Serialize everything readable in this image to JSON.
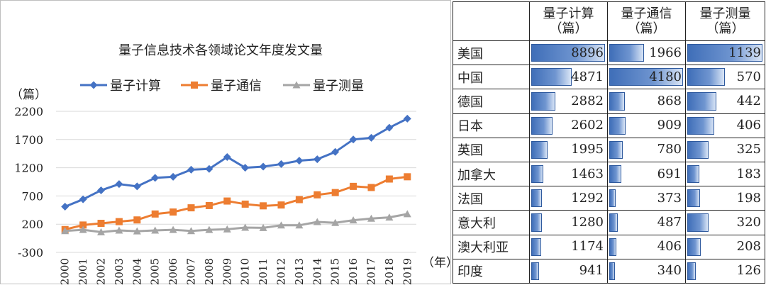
{
  "chart_data": [
    {
      "type": "line",
      "title": "量子信息技术各领域论文年度发文量",
      "ylabel": "（篇）",
      "xlabel": "（年）",
      "ylim": [
        -300,
        2200
      ],
      "yticks": [
        -300,
        200,
        700,
        1200,
        1700,
        2200
      ],
      "categories": [
        "2000",
        "2001",
        "2002",
        "2003",
        "2004",
        "2005",
        "2006",
        "2007",
        "2008",
        "2009",
        "2010",
        "2011",
        "2012",
        "2013",
        "2014",
        "2015",
        "2016",
        "2017",
        "2018",
        "2019"
      ],
      "series": [
        {
          "name": "量子计算",
          "color": "#4472c4",
          "marker": "diamond",
          "values": [
            510,
            640,
            800,
            910,
            870,
            1020,
            1040,
            1165,
            1180,
            1390,
            1200,
            1220,
            1265,
            1325,
            1350,
            1480,
            1700,
            1730,
            1910,
            2070
          ]
        },
        {
          "name": "量子通信",
          "color": "#ed7d31",
          "marker": "square",
          "values": [
            105,
            185,
            215,
            245,
            275,
            380,
            415,
            490,
            530,
            610,
            555,
            525,
            540,
            635,
            720,
            760,
            870,
            850,
            1000,
            1040
          ]
        },
        {
          "name": "量子测量",
          "color": "#a5a5a5",
          "marker": "triangle",
          "values": [
            80,
            100,
            60,
            90,
            75,
            90,
            100,
            80,
            100,
            110,
            140,
            135,
            180,
            180,
            240,
            225,
            270,
            300,
            320,
            380
          ]
        }
      ],
      "legend": "top"
    },
    {
      "type": "table",
      "columns": [
        "",
        "量子计算\n（篇）",
        "量子通信\n（篇）",
        "量子测量\n（篇）"
      ],
      "rows": [
        {
          "country": "美国",
          "values": [
            8896,
            1966,
            1139
          ]
        },
        {
          "country": "中国",
          "values": [
            4871,
            4180,
            570
          ]
        },
        {
          "country": "德国",
          "values": [
            2882,
            868,
            442
          ]
        },
        {
          "country": "日本",
          "values": [
            2602,
            909,
            406
          ]
        },
        {
          "country": "英国",
          "values": [
            1995,
            780,
            325
          ]
        },
        {
          "country": "加拿大",
          "values": [
            1463,
            691,
            183
          ]
        },
        {
          "country": "法国",
          "values": [
            1292,
            373,
            198
          ]
        },
        {
          "country": "意大利",
          "values": [
            1280,
            487,
            320
          ]
        },
        {
          "country": "澳大利亚",
          "values": [
            1174,
            406,
            208
          ]
        },
        {
          "country": "印度",
          "values": [
            941,
            340,
            126
          ]
        }
      ]
    }
  ]
}
